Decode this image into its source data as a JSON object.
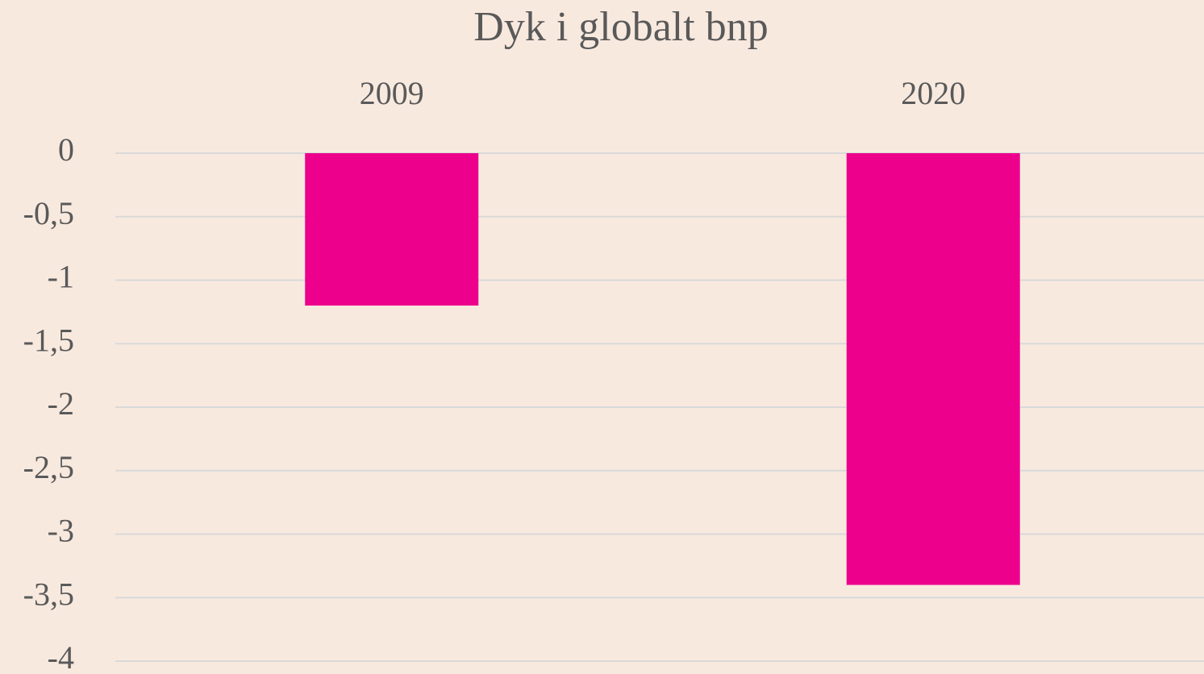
{
  "chart_data": {
    "type": "bar",
    "title": "Dyk i globalt bnp",
    "categories": [
      "2009",
      "2020"
    ],
    "values": [
      -1.2,
      -3.4
    ],
    "color": "#ec008c",
    "ylim": [
      -4,
      0
    ],
    "yticks": [
      0,
      {
        "value": -0.5,
        "label": "-0,5"
      },
      -1,
      {
        "value": -1.5,
        "label": "-1,5"
      },
      -2,
      {
        "value": -2.5,
        "label": "-2,5"
      },
      -3,
      {
        "value": -3.5,
        "label": "-3,5"
      },
      -4
    ],
    "grid": true
  }
}
